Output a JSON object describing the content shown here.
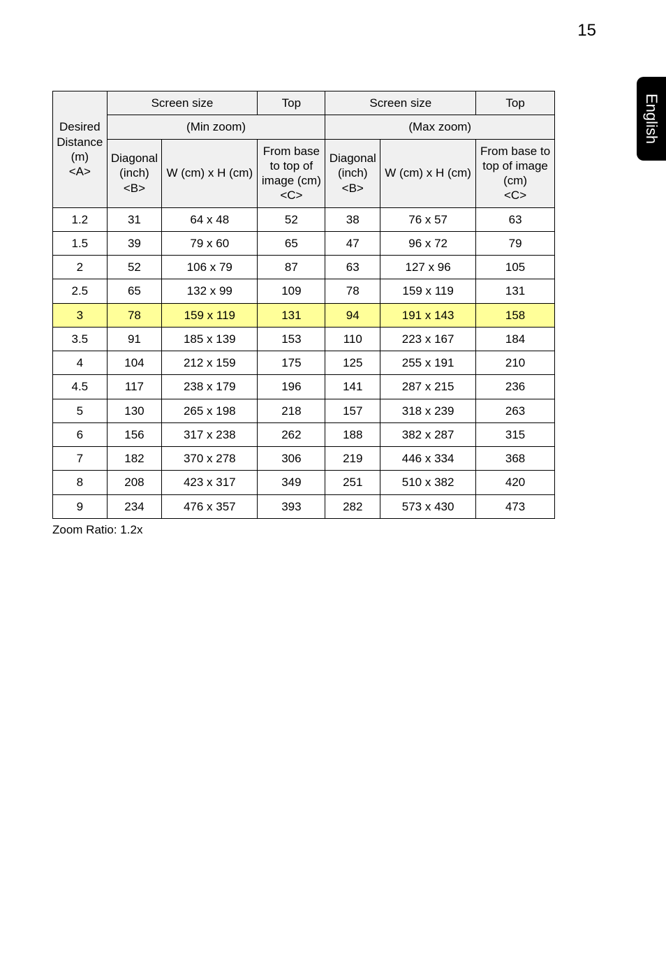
{
  "page_number": "15",
  "side_tab": "English",
  "colors": {
    "header_bg": "#f0f0f0",
    "highlight_bg": "#ffff99",
    "border": "#000000",
    "tab_bg": "#000000",
    "tab_text": "#ffffff"
  },
  "fonts": {
    "body_family": "Arial, Helvetica, sans-serif",
    "table_size_pt": 13,
    "page_number_size_pt": 18
  },
  "table": {
    "header": {
      "screen_size": "Screen size",
      "top": "Top",
      "min_zoom": "(Min zoom)",
      "max_zoom": "(Max zoom)",
      "desired_distance_line1": "Desired",
      "desired_distance_line2": "Distance",
      "desired_distance_line3": "(m)",
      "desired_distance_line4": "<A>",
      "diag_line1": "Diagonal",
      "diag_line2": "(inch)",
      "diag_line3": "<B>",
      "wh_cm": "W (cm) x H (cm)",
      "min_top_line1": "From base",
      "min_top_line2": "to top of",
      "min_top_line3": "image (cm)",
      "min_top_line4": "<C>",
      "max_top_line1": "From base to",
      "max_top_line2": "top of image",
      "max_top_line3": "(cm)",
      "max_top_line4": "<C>"
    },
    "highlight_row_index": 4,
    "rows": [
      {
        "dist": "1.2",
        "min_diag": "31",
        "min_wh": "64 x 48",
        "min_top": "52",
        "max_diag": "38",
        "max_wh": "76 x 57",
        "max_top": "63"
      },
      {
        "dist": "1.5",
        "min_diag": "39",
        "min_wh": "79 x 60",
        "min_top": "65",
        "max_diag": "47",
        "max_wh": "96 x 72",
        "max_top": "79"
      },
      {
        "dist": "2",
        "min_diag": "52",
        "min_wh": "106 x 79",
        "min_top": "87",
        "max_diag": "63",
        "max_wh": "127 x 96",
        "max_top": "105"
      },
      {
        "dist": "2.5",
        "min_diag": "65",
        "min_wh": "132 x 99",
        "min_top": "109",
        "max_diag": "78",
        "max_wh": "159 x 119",
        "max_top": "131"
      },
      {
        "dist": "3",
        "min_diag": "78",
        "min_wh": "159 x 119",
        "min_top": "131",
        "max_diag": "94",
        "max_wh": "191 x 143",
        "max_top": "158"
      },
      {
        "dist": "3.5",
        "min_diag": "91",
        "min_wh": "185 x 139",
        "min_top": "153",
        "max_diag": "110",
        "max_wh": "223 x 167",
        "max_top": "184"
      },
      {
        "dist": "4",
        "min_diag": "104",
        "min_wh": "212 x 159",
        "min_top": "175",
        "max_diag": "125",
        "max_wh": "255 x 191",
        "max_top": "210"
      },
      {
        "dist": "4.5",
        "min_diag": "117",
        "min_wh": "238 x 179",
        "min_top": "196",
        "max_diag": "141",
        "max_wh": "287 x 215",
        "max_top": "236"
      },
      {
        "dist": "5",
        "min_diag": "130",
        "min_wh": "265 x 198",
        "min_top": "218",
        "max_diag": "157",
        "max_wh": "318 x 239",
        "max_top": "263"
      },
      {
        "dist": "6",
        "min_diag": "156",
        "min_wh": "317 x 238",
        "min_top": "262",
        "max_diag": "188",
        "max_wh": "382 x 287",
        "max_top": "315"
      },
      {
        "dist": "7",
        "min_diag": "182",
        "min_wh": "370 x 278",
        "min_top": "306",
        "max_diag": "219",
        "max_wh": "446 x 334",
        "max_top": "368"
      },
      {
        "dist": "8",
        "min_diag": "208",
        "min_wh": "423 x 317",
        "min_top": "349",
        "max_diag": "251",
        "max_wh": "510 x 382",
        "max_top": "420"
      },
      {
        "dist": "9",
        "min_diag": "234",
        "min_wh": "476 x 357",
        "min_top": "393",
        "max_diag": "282",
        "max_wh": "573 x 430",
        "max_top": "473"
      }
    ]
  },
  "footnote": "Zoom Ratio: 1.2x"
}
